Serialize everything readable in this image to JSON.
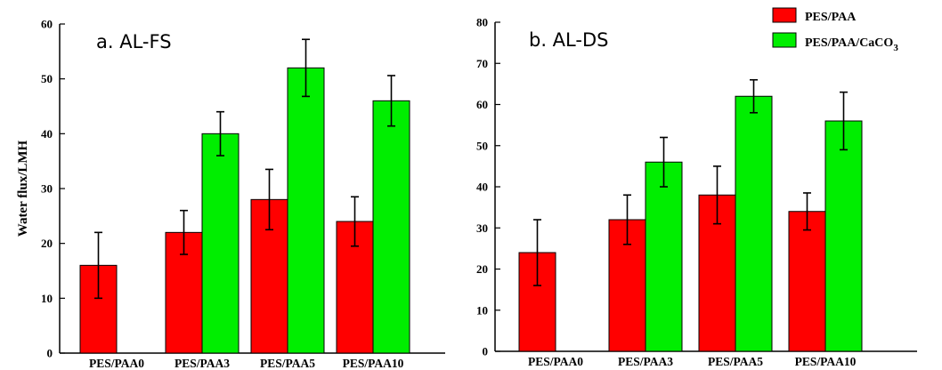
{
  "chart_data": [
    {
      "type": "bar",
      "title": "a. AL-FS",
      "ylabel": "Water flux/LMH",
      "xlabel": "",
      "ylim": [
        0,
        60
      ],
      "yticks": [
        "0",
        "10",
        "20",
        "30",
        "40",
        "50",
        "60"
      ],
      "categories": [
        "PES/PAA0",
        "PES/PAA3",
        "PES/PAA5",
        "PES/PAA10"
      ],
      "series": [
        {
          "name": "PES/PAA",
          "color": "#ff0000",
          "values": [
            16,
            22,
            28,
            24
          ],
          "errors": [
            6,
            4,
            5.5,
            4.5
          ]
        },
        {
          "name": "PES/PAA/CaCO3",
          "color": "#00ee00",
          "values": [
            null,
            40,
            52,
            46
          ],
          "errors": [
            null,
            4,
            5.2,
            4.6
          ]
        }
      ]
    },
    {
      "type": "bar",
      "title": "b. AL-DS",
      "ylabel": "",
      "xlabel": "",
      "ylim": [
        0,
        80
      ],
      "yticks": [
        "0",
        "10",
        "20",
        "30",
        "40",
        "50",
        "60",
        "70",
        "80"
      ],
      "categories": [
        "PES/PAA0",
        "PES/PAA3",
        "PES/PAA5",
        "PES/PAA10"
      ],
      "series": [
        {
          "name": "PES/PAA",
          "color": "#ff0000",
          "values": [
            24,
            32,
            38,
            34
          ],
          "errors": [
            8,
            6,
            7,
            4.5
          ]
        },
        {
          "name": "PES/PAA/CaCO3",
          "color": "#00ee00",
          "values": [
            null,
            46,
            62,
            56
          ],
          "errors": [
            null,
            6,
            4,
            7
          ]
        }
      ]
    }
  ],
  "legend": {
    "placement": "top-right",
    "items": [
      {
        "label": "PES/PAA",
        "color": "#ff0000"
      },
      {
        "label_main": "PES/PAA/CaCO",
        "label_sub": "3",
        "color": "#00ee00"
      }
    ]
  }
}
